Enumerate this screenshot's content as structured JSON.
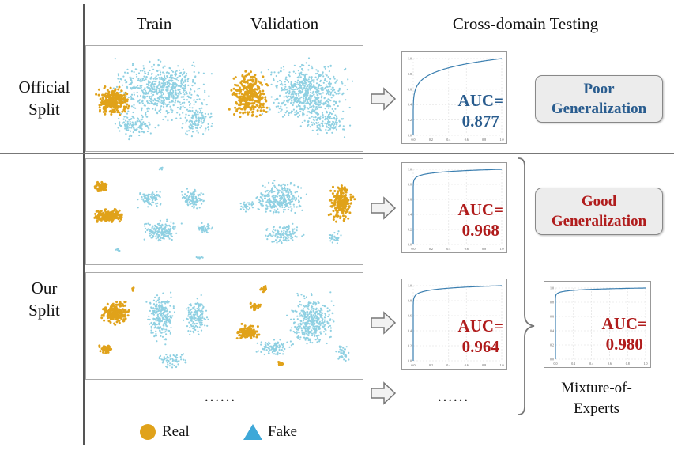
{
  "headers": {
    "train": "Train",
    "validation": "Validation",
    "testing": "Cross-domain Testing"
  },
  "rows": {
    "official": {
      "label_line1": "Official",
      "label_line2": "Split"
    },
    "ours": {
      "label_line1": "Our",
      "label_line2": "Split"
    }
  },
  "roc_plots": [
    {
      "auc_label": "AUC=",
      "auc_value": "0.877",
      "auc": 0.877,
      "color": "#2a5d8f"
    },
    {
      "auc_label": "AUC=",
      "auc_value": "0.968",
      "auc": 0.968,
      "color": "#b01c1c"
    },
    {
      "auc_label": "AUC=",
      "auc_value": "0.964",
      "auc": 0.964,
      "color": "#b01c1c"
    },
    {
      "auc_label": "AUC=",
      "auc_value": "0.980",
      "auc": 0.98,
      "color": "#b01c1c"
    }
  ],
  "roc_axis_ticks": [
    "0.0",
    "0.2",
    "0.4",
    "0.6",
    "0.8",
    "1.0"
  ],
  "badges": {
    "poor": {
      "line1": "Poor",
      "line2": "Generalization",
      "color": "#2a5d8f"
    },
    "good": {
      "line1": "Good",
      "line2": "Generalization",
      "color": "#b01c1c"
    }
  },
  "ellipsis_left": "……",
  "ellipsis_right": "……",
  "moe": {
    "line1": "Mixture-of-",
    "line2": "Experts"
  },
  "legend": {
    "real": "Real",
    "fake": "Fake",
    "real_color": "#e0a21a",
    "fake_color": "#3ea8d8"
  },
  "scatter_colors": {
    "real": "#e0a21a",
    "fake": "#8fd0e2"
  }
}
